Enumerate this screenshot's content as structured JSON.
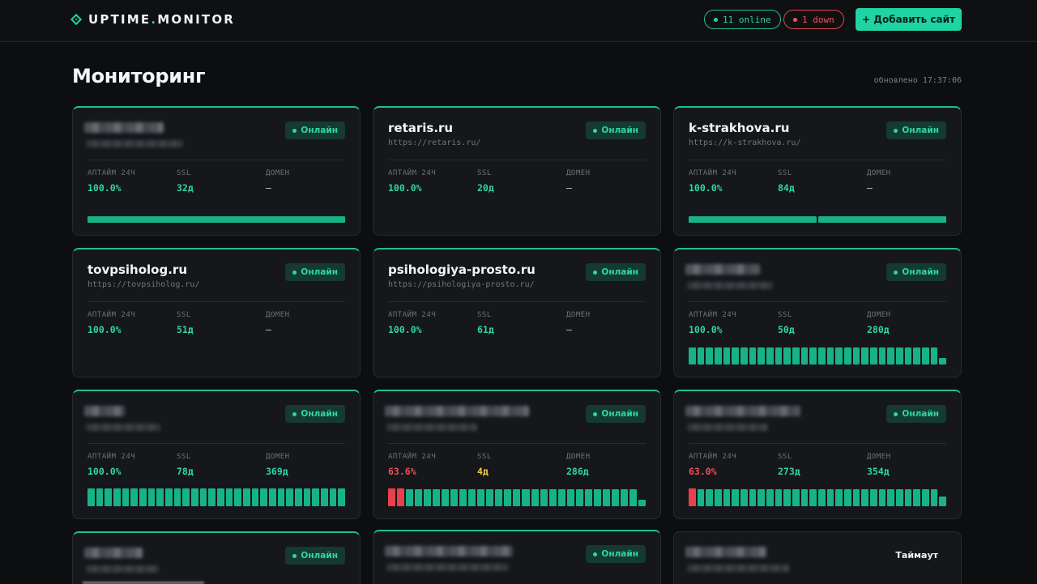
{
  "header": {
    "logo_text_a": "UPTIME",
    "logo_text_dot": ".",
    "logo_text_b": "MONITOR",
    "online_label": "11 online",
    "down_label": "1 down",
    "add_button": "+ Добавить сайт"
  },
  "page": {
    "title": "Мониторинг",
    "updated": "обновлено 17:37:06"
  },
  "labels": {
    "uptime": "АПТАЙМ 24Ч",
    "ssl": "SSL",
    "domain": "ДОМЕН",
    "status_online": "Онлайн",
    "status_timeout": "Таймаут"
  },
  "cards": [
    {
      "name": "",
      "url": "",
      "uptime": "100.0%",
      "ssl": "32д",
      "domain": "—",
      "history": "single"
    },
    {
      "name": "retaris.ru",
      "url": "https://retaris.ru/",
      "uptime": "100.0%",
      "ssl": "20д",
      "domain": "—",
      "history": "none"
    },
    {
      "name": "k-strakhova.ru",
      "url": "https://k-strakhova.ru/",
      "uptime": "100.0%",
      "ssl": "84д",
      "domain": "—",
      "history": "double"
    },
    {
      "name": "tovpsiholog.ru",
      "url": "https://tovpsiholog.ru/",
      "uptime": "100.0%",
      "ssl": "51д",
      "domain": "—",
      "history": "none"
    },
    {
      "name": "psihologiya-prosto.ru",
      "url": "https://psihologiya-prosto.ru/",
      "uptime": "100.0%",
      "ssl": "61д",
      "domain": "—",
      "history": "none"
    },
    {
      "name": "",
      "url": "",
      "uptime": "100.0%",
      "ssl": "50д",
      "domain": "280д",
      "history": "bars"
    },
    {
      "name": "",
      "url": "",
      "uptime": "100.0%",
      "ssl": "78д",
      "domain": "369д",
      "history": "bars"
    },
    {
      "name": "",
      "url": "",
      "uptime": "63.6%",
      "ssl": "4д",
      "domain": "286д",
      "history": "bars"
    },
    {
      "name": "",
      "url": "",
      "uptime": "63.0%",
      "ssl": "273д",
      "domain": "354д",
      "history": "bars"
    },
    {
      "name": "",
      "url": "",
      "status": "Онлайн"
    },
    {
      "name": "",
      "url": "",
      "status": "Онлайн"
    },
    {
      "name": "",
      "url": "",
      "status": "Таймаут"
    }
  ],
  "colors": {
    "accent": "#1fd3a4",
    "danger": "#ef4f58",
    "warning": "#ecc94b",
    "background": "#0d0e10",
    "card": "#15171a"
  },
  "icons": {
    "logo": "diamond-logo-icon",
    "status_dot": "status-dot-icon"
  }
}
